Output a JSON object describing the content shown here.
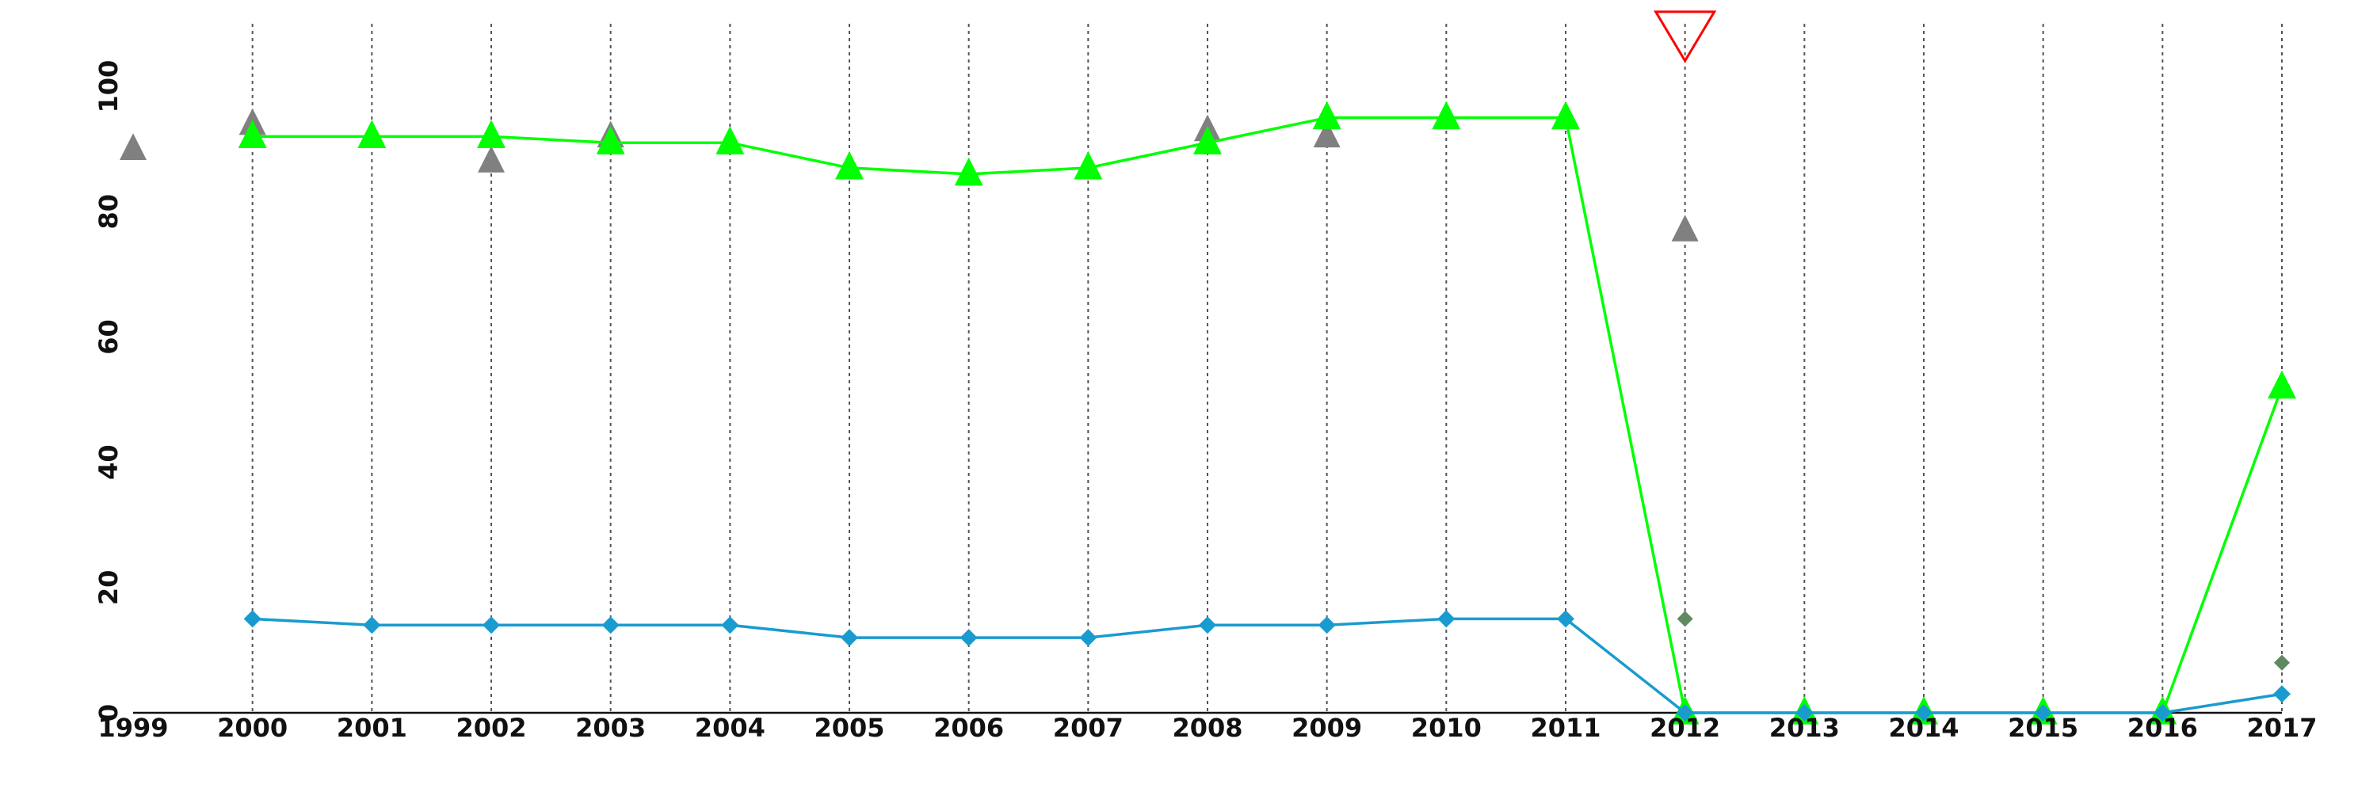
{
  "chart_data": {
    "type": "line",
    "title": "",
    "xlabel": "",
    "ylabel": "",
    "x": [
      1999,
      2000,
      2001,
      2002,
      2003,
      2004,
      2005,
      2006,
      2007,
      2008,
      2009,
      2010,
      2011,
      2012,
      2013,
      2014,
      2015,
      2016,
      2017
    ],
    "x_tick_labels": [
      "1999",
      "2000",
      "2001",
      "2002",
      "2003",
      "2004",
      "2005",
      "2006",
      "2007",
      "2008",
      "2009",
      "2010",
      "2011",
      "2012",
      "2013",
      "2014",
      "2015",
      "2016",
      "2017"
    ],
    "xlim": [
      1999,
      2017
    ],
    "ylim": [
      0,
      110
    ],
    "y_ticks": [
      0,
      20,
      40,
      60,
      80,
      100
    ],
    "y_tick_labels": [
      "0",
      "20",
      "40",
      "60",
      "80",
      "100"
    ],
    "grid": "vertical dotted lines at each year",
    "legend": "none",
    "series": [
      {
        "marker": "triangle",
        "color": "#00ff00",
        "connected": true,
        "x": [
          2000,
          2001,
          2002,
          2003,
          2004,
          2005,
          2006,
          2007,
          2008,
          2009,
          2010,
          2011,
          2012,
          2013,
          2014,
          2015,
          2016,
          2017
        ],
        "values": [
          92,
          92,
          92,
          91,
          91,
          87,
          86,
          87,
          91,
          95,
          95,
          95,
          0,
          0,
          0,
          0,
          0,
          52
        ]
      },
      {
        "marker": "diamond",
        "color": "#1a9bcf",
        "connected": true,
        "x": [
          2000,
          2001,
          2002,
          2003,
          2004,
          2005,
          2006,
          2007,
          2008,
          2009,
          2010,
          2011,
          2012,
          2013,
          2014,
          2015,
          2016,
          2017
        ],
        "values": [
          15,
          14,
          14,
          14,
          14,
          12,
          12,
          12,
          14,
          14,
          15,
          15,
          0,
          0,
          0,
          0,
          0,
          3
        ]
      },
      {
        "marker": "triangle",
        "color": "#808080",
        "connected": false,
        "x": [
          1999,
          2000,
          2002,
          2003,
          2008,
          2009,
          2012
        ],
        "values": [
          90,
          94,
          88,
          92,
          93,
          92,
          77
        ]
      },
      {
        "marker": "diamond",
        "color": "#5f8a5f",
        "connected": false,
        "x": [
          2012,
          2017
        ],
        "values": [
          15,
          8
        ]
      }
    ],
    "annotations": [
      {
        "type": "inverted-triangle-outline",
        "color": "#ff0000",
        "x": 2012,
        "y": 108
      }
    ]
  }
}
